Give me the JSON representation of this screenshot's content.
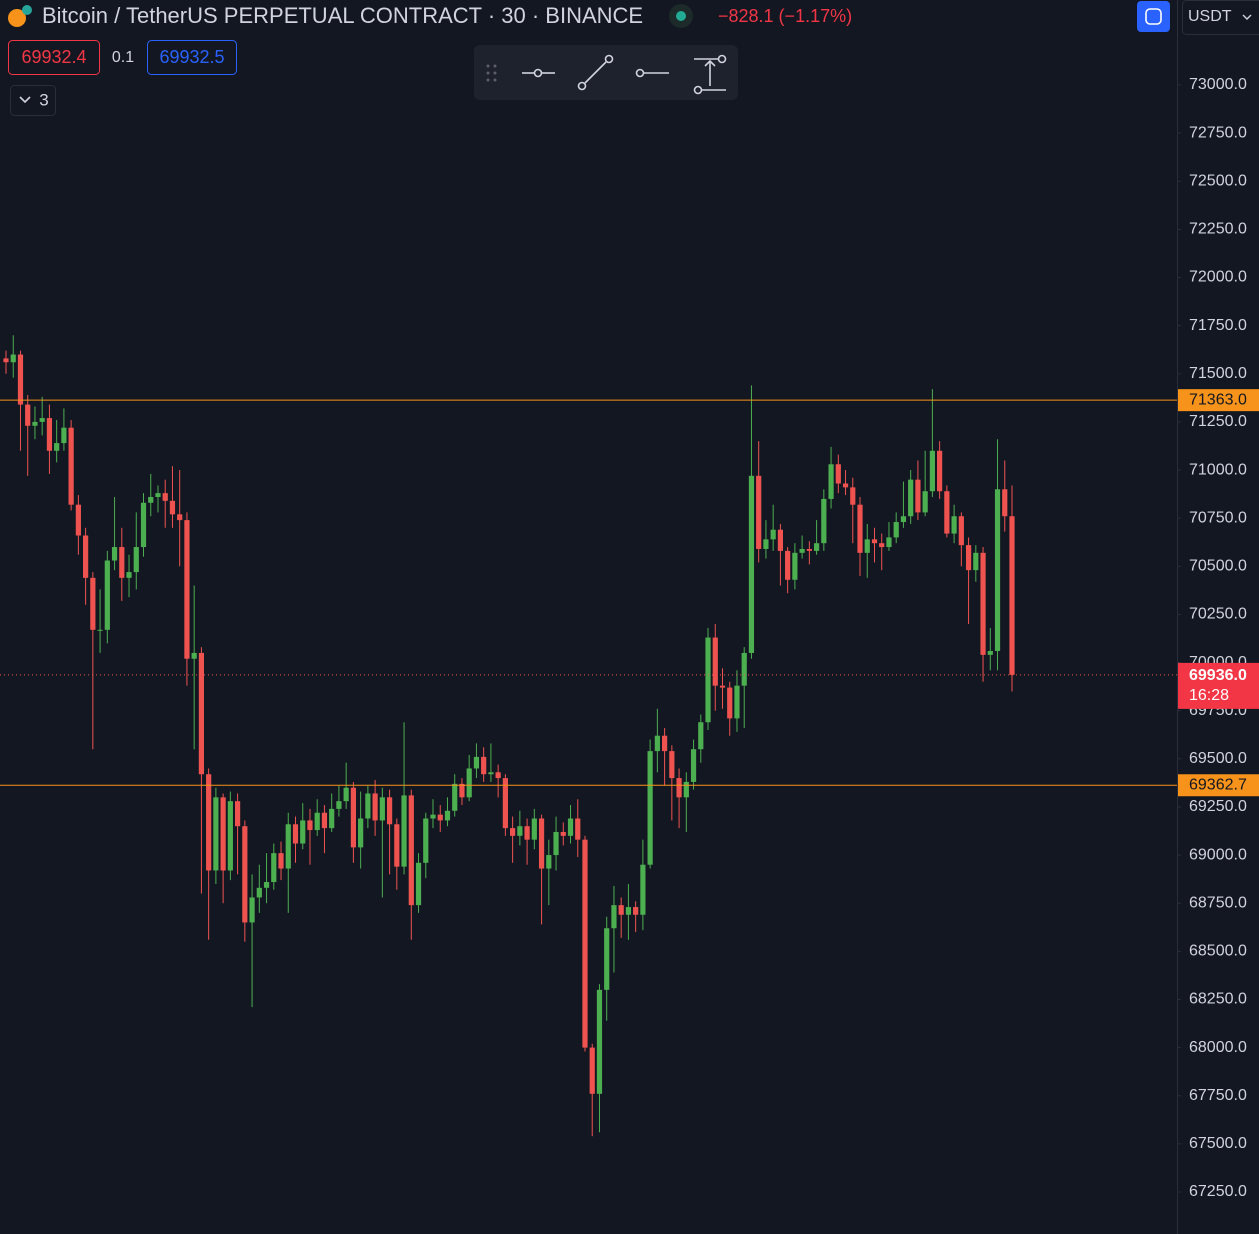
{
  "chart_data": {
    "type": "candlestick",
    "title": "Bitcoin / TetherUS PERPETUAL CONTRACT · 30 · BINANCE",
    "change": "−828.1 (−1.17%)",
    "bid": 69932.4,
    "spread": 0.1,
    "ask": 69932.5,
    "indicators_hidden": 3,
    "currency": "USDT",
    "up_color": "#4caf50",
    "down_color": "#ef5350",
    "line_color": "#f7931a",
    "ylim": [
      67031.8,
      73441.5
    ],
    "yticks": [
      {
        "value": 67250,
        "label": "67250.0"
      },
      {
        "value": 67500,
        "label": "67500.0"
      },
      {
        "value": 67750,
        "label": "67750.0"
      },
      {
        "value": 68000,
        "label": "68000.0"
      },
      {
        "value": 68250,
        "label": "68250.0"
      },
      {
        "value": 68500,
        "label": "68500.0"
      },
      {
        "value": 68750,
        "label": "68750.0"
      },
      {
        "value": 69000,
        "label": "69000.0"
      },
      {
        "value": 69250,
        "label": "69250.0"
      },
      {
        "value": 69500,
        "label": "69500.0"
      },
      {
        "value": 69750,
        "label": "69750.0"
      },
      {
        "value": 70000,
        "label": "70000.0"
      },
      {
        "value": 70250,
        "label": "70250.0"
      },
      {
        "value": 70500,
        "label": "70500.0"
      },
      {
        "value": 70750,
        "label": "70750.0"
      },
      {
        "value": 71000,
        "label": "71000.0"
      },
      {
        "value": 71250,
        "label": "71250.0"
      },
      {
        "value": 71500,
        "label": "71500.0"
      },
      {
        "value": 71750,
        "label": "71750.0"
      },
      {
        "value": 72000,
        "label": "72000.0"
      },
      {
        "value": 72250,
        "label": "72250.0"
      },
      {
        "value": 72500,
        "label": "72500.0"
      },
      {
        "value": 72750,
        "label": "72750.0"
      },
      {
        "value": 73000,
        "label": "73000.0"
      }
    ],
    "price_lines": [
      {
        "value": 71363.0,
        "label": "71363.0"
      },
      {
        "value": 69362.7,
        "label": "69362.7"
      }
    ],
    "last_price": {
      "value": 69936.0,
      "label": "69936.0",
      "countdown": "16:28"
    },
    "open": [
      71580,
      71560,
      71600,
      71340,
      71230,
      71250,
      71270,
      71100,
      71140,
      71220,
      70820,
      70660,
      70440,
      70170,
      70170,
      70530,
      70600,
      70440,
      70470,
      70600,
      70830,
      70860,
      70880,
      70840,
      70770,
      70740,
      70020,
      70050,
      69420,
      68920,
      69300,
      68920,
      69280,
      69150,
      68650,
      68780,
      68830,
      68860,
      69010,
      68930,
      69160,
      69060,
      69180,
      69130,
      69220,
      69140,
      69240,
      69280,
      69350,
      69040,
      69190,
      69320,
      69180,
      69300,
      69160,
      68940,
      69310,
      68740,
      68960,
      69190,
      69210,
      69180,
      69230,
      69370,
      69300,
      69450,
      69510,
      69420,
      69430,
      69400,
      69140,
      69100,
      69150,
      69080,
      69190,
      68930,
      69000,
      69120,
      69100,
      69190,
      69080,
      68000,
      67760,
      68300,
      68620,
      68740,
      68690,
      68730,
      68690,
      68950,
      69540,
      69620,
      69540,
      69400,
      69300,
      69380,
      69550,
      69690,
      70130,
      69880,
      69870,
      69710,
      69880,
      70050,
      70970,
      70590,
      70640,
      70690,
      70580,
      70430,
      70570,
      70590,
      70580,
      70620,
      70850,
      71030,
      70930,
      70910,
      70820,
      70570,
      70640,
      70620,
      70600,
      70650,
      70730,
      70760,
      70950,
      70780,
      70890,
      71100,
      70890,
      70670,
      70760,
      70610,
      70480,
      70570,
      70040,
      70060,
      70900,
      70760
    ],
    "high": [
      71620,
      71700,
      71620,
      71390,
      71330,
      71380,
      71340,
      71260,
      71320,
      71260,
      70870,
      70700,
      70470,
      70380,
      70580,
      70860,
      70700,
      70560,
      70780,
      70880,
      70980,
      70920,
      70950,
      71020,
      71000,
      70780,
      70400,
      70080,
      69450,
      69350,
      69320,
      69330,
      69320,
      69180,
      68900,
      68950,
      69010,
      69060,
      69070,
      69220,
      69200,
      69270,
      69240,
      69290,
      69260,
      69320,
      69360,
      69480,
      69380,
      69330,
      69360,
      69390,
      69350,
      69340,
      69190,
      69690,
      69340,
      69010,
      69220,
      69290,
      69260,
      69300,
      69420,
      69400,
      69520,
      69580,
      69560,
      69580,
      69470,
      69420,
      69200,
      69230,
      69190,
      69240,
      69210,
      69080,
      69200,
      69170,
      69260,
      69290,
      69100,
      68020,
      68330,
      68680,
      68840,
      68780,
      68850,
      68760,
      69080,
      69600,
      69760,
      69660,
      69570,
      69450,
      69430,
      69600,
      69730,
      70180,
      70200,
      69970,
      69900,
      69960,
      70080,
      71440,
      71150,
      70740,
      70820,
      70720,
      70600,
      70620,
      70660,
      70630,
      70740,
      70900,
      71120,
      71080,
      71000,
      70960,
      70860,
      70720,
      70700,
      70670,
      70730,
      70780,
      70940,
      71000,
      71050,
      71100,
      71420,
      71150,
      70920,
      70820,
      70780,
      70650,
      70610,
      70600,
      70180,
      71160,
      71050,
      70920
    ],
    "low": [
      71500,
      71480,
      71100,
      70970,
      71160,
      71180,
      70980,
      71040,
      71100,
      70790,
      70560,
      70300,
      69550,
      70050,
      70100,
      70480,
      70320,
      70340,
      70380,
      70550,
      70760,
      70780,
      70700,
      70700,
      70500,
      69880,
      69550,
      68800,
      68560,
      68850,
      68750,
      68870,
      68900,
      68550,
      68210,
      68700,
      68750,
      68820,
      68870,
      68700,
      68960,
      69030,
      68950,
      69100,
      69010,
      69120,
      69200,
      69240,
      68960,
      68930,
      69140,
      69100,
      68780,
      68900,
      68820,
      68900,
      68560,
      68700,
      68880,
      69140,
      69120,
      69150,
      69200,
      69260,
      69280,
      69400,
      69380,
      69380,
      69300,
      69100,
      68960,
      69050,
      68950,
      69030,
      68640,
      68740,
      68920,
      69050,
      69060,
      68990,
      67980,
      67540,
      67560,
      68140,
      68390,
      68570,
      68560,
      68600,
      68610,
      68930,
      69430,
      69360,
      69180,
      69140,
      69120,
      69340,
      69480,
      69650,
      69750,
      69760,
      69620,
      69640,
      69660,
      70020,
      70520,
      70540,
      70580,
      70400,
      70360,
      70380,
      70540,
      70510,
      70560,
      70580,
      70800,
      70880,
      70870,
      70620,
      70450,
      70440,
      70520,
      70480,
      70580,
      70620,
      70700,
      70720,
      70740,
      70760,
      70860,
      70850,
      70650,
      70620,
      70500,
      70200,
      70420,
      69900,
      69960,
      69960,
      70680,
      69850
    ],
    "close": [
      71560,
      71600,
      71340,
      71230,
      71250,
      71270,
      71100,
      71140,
      71220,
      70820,
      70660,
      70440,
      70170,
      70170,
      70530,
      70600,
      70440,
      70470,
      70600,
      70830,
      70860,
      70880,
      70840,
      70770,
      70740,
      70020,
      70050,
      69420,
      68920,
      69300,
      68920,
      69280,
      69150,
      68650,
      68780,
      68830,
      68860,
      69010,
      68930,
      69160,
      69060,
      69180,
      69130,
      69220,
      69140,
      69240,
      69280,
      69350,
      69040,
      69190,
      69320,
      69180,
      69300,
      69160,
      68940,
      69310,
      68740,
      68960,
      69190,
      69210,
      69180,
      69230,
      69370,
      69300,
      69450,
      69510,
      69420,
      69430,
      69400,
      69140,
      69100,
      69150,
      69080,
      69190,
      68930,
      69000,
      69120,
      69100,
      69190,
      69080,
      68000,
      67760,
      68300,
      68620,
      68740,
      68690,
      68730,
      68690,
      68950,
      69540,
      69620,
      69540,
      69400,
      69300,
      69380,
      69550,
      69690,
      70130,
      69880,
      69870,
      69710,
      69880,
      70050,
      70970,
      70590,
      70640,
      70690,
      70580,
      70430,
      70570,
      70590,
      70580,
      70620,
      70850,
      71030,
      70930,
      70910,
      70820,
      70570,
      70640,
      70620,
      70600,
      70650,
      70730,
      70760,
      70950,
      70780,
      70890,
      71100,
      70890,
      70670,
      70760,
      70610,
      70480,
      70570,
      70040,
      70060,
      70900,
      70760,
      69936
    ]
  }
}
